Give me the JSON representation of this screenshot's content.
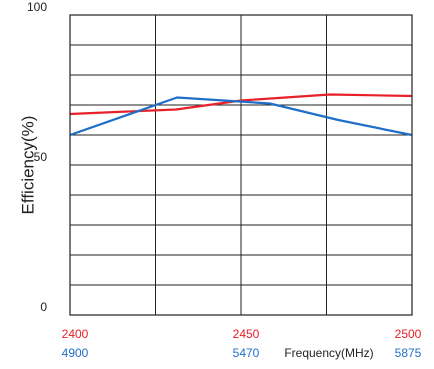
{
  "chart_data": {
    "type": "line",
    "ylabel": "Efficiency(%)",
    "xlabel": "Frequency(MHz)",
    "ylim": [
      0,
      100
    ],
    "y_ticks": [
      0,
      50,
      100
    ],
    "grid": true,
    "x_axis_rows": [
      {
        "color": "#e8202a",
        "ticks": [
          "2400",
          "2450",
          "2500"
        ]
      },
      {
        "color": "#1e6fc8",
        "ticks": [
          "4900",
          "5470",
          "5875"
        ]
      }
    ],
    "series": [
      {
        "color": "#e8202a",
        "axis_row": 0,
        "x": [
          2400,
          2431,
          2450,
          2476,
          2500
        ],
        "y": [
          67,
          68.5,
          71.5,
          73.5,
          73
        ]
      },
      {
        "color": "#1e6fc8",
        "axis_row": 1,
        "x": [
          4900,
          5205,
          5470,
          5665,
          5875
        ],
        "y": [
          60,
          72.5,
          70.5,
          65,
          60
        ]
      }
    ]
  }
}
